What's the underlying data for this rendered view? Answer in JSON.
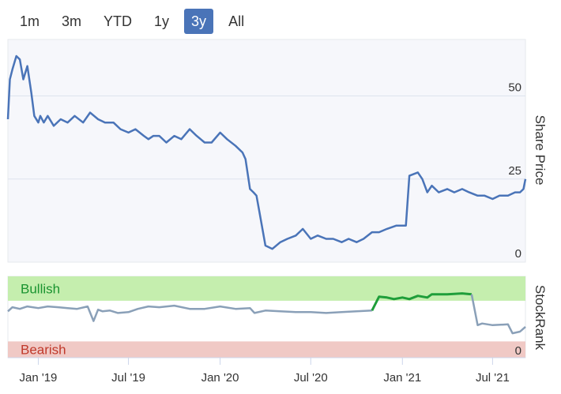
{
  "range_tabs": {
    "items": [
      "1m",
      "3m",
      "YTD",
      "1y",
      "3y",
      "All"
    ],
    "active_index": 4
  },
  "chart_data": [
    {
      "type": "line",
      "ylabel": "Share Price",
      "ylim": [
        0,
        67
      ],
      "yticks": [
        0,
        25,
        50
      ],
      "color": "#4a74b8",
      "grid": true,
      "x": [
        "2018-11-01",
        "2018-11-05",
        "2018-11-10",
        "2018-11-18",
        "2018-11-25",
        "2018-12-02",
        "2018-12-10",
        "2018-12-18",
        "2018-12-24",
        "2019-01-01",
        "2019-01-05",
        "2019-01-12",
        "2019-01-20",
        "2019-02-01",
        "2019-02-15",
        "2019-03-01",
        "2019-03-15",
        "2019-04-01",
        "2019-04-15",
        "2019-05-01",
        "2019-05-15",
        "2019-06-01",
        "2019-06-15",
        "2019-07-01",
        "2019-07-15",
        "2019-08-01",
        "2019-08-10",
        "2019-08-20",
        "2019-09-01",
        "2019-09-15",
        "2019-10-01",
        "2019-10-15",
        "2019-11-01",
        "2019-11-15",
        "2019-12-01",
        "2019-12-15",
        "2020-01-01",
        "2020-01-15",
        "2020-02-01",
        "2020-02-15",
        "2020-02-21",
        "2020-03-01",
        "2020-03-08",
        "2020-03-14",
        "2020-03-20",
        "2020-04-01",
        "2020-04-15",
        "2020-05-01",
        "2020-05-15",
        "2020-06-01",
        "2020-06-15",
        "2020-07-01",
        "2020-07-15",
        "2020-08-01",
        "2020-08-15",
        "2020-09-01",
        "2020-09-15",
        "2020-10-01",
        "2020-10-15",
        "2020-11-01",
        "2020-11-15",
        "2020-12-01",
        "2020-12-20",
        "2021-01-05",
        "2021-01-08",
        "2021-01-15",
        "2021-02-01",
        "2021-02-10",
        "2021-02-20",
        "2021-03-01",
        "2021-03-15",
        "2021-04-01",
        "2021-04-15",
        "2021-05-01",
        "2021-05-15",
        "2021-06-01",
        "2021-06-15",
        "2021-07-01",
        "2021-07-15",
        "2021-08-01",
        "2021-08-15",
        "2021-08-25",
        "2021-09-01",
        "2021-09-05"
      ],
      "values": [
        43,
        55,
        58,
        62,
        61,
        55,
        59,
        51,
        44,
        42,
        44,
        42,
        44,
        41,
        43,
        42,
        44,
        42,
        45,
        43,
        42,
        42,
        40,
        39,
        40,
        38,
        37,
        38,
        38,
        36,
        38,
        37,
        40,
        38,
        36,
        36,
        39,
        37,
        35,
        33,
        31,
        22,
        21,
        20,
        15,
        5,
        4,
        6,
        7,
        8,
        10,
        7,
        8,
        7,
        7,
        6,
        7,
        6,
        7,
        9,
        9,
        10,
        11,
        11,
        11,
        26,
        27,
        25,
        21,
        23,
        21,
        22,
        21,
        22,
        21,
        20,
        20,
        19,
        20,
        20,
        21,
        21,
        22,
        25
      ]
    },
    {
      "type": "line",
      "ylabel": "StockRank",
      "ylim": [
        0,
        100
      ],
      "yticks": [
        0
      ],
      "bands": [
        {
          "label": "Bullish",
          "from": 70,
          "to": 100,
          "color": "#c5eeae",
          "text_color": "#1a9430"
        },
        {
          "label": "Bearish",
          "from": 0,
          "to": 20,
          "color": "#f0c9c5",
          "text_color": "#c0392b"
        }
      ],
      "colors": {
        "line": "#8aa0b8",
        "bullish_line": "#1f9e3a"
      },
      "x": [
        "2018-11-01",
        "2018-11-10",
        "2018-11-25",
        "2018-12-10",
        "2019-01-01",
        "2019-01-20",
        "2019-02-10",
        "2019-03-01",
        "2019-03-20",
        "2019-04-10",
        "2019-04-22",
        "2019-05-01",
        "2019-05-10",
        "2019-05-25",
        "2019-06-10",
        "2019-07-01",
        "2019-07-20",
        "2019-08-10",
        "2019-09-01",
        "2019-10-01",
        "2019-11-01",
        "2019-12-01",
        "2020-01-01",
        "2020-02-01",
        "2020-03-01",
        "2020-03-10",
        "2020-04-01",
        "2020-05-01",
        "2020-06-01",
        "2020-07-01",
        "2020-08-01",
        "2020-09-01",
        "2020-10-01",
        "2020-11-01",
        "2020-11-15",
        "2020-12-01",
        "2020-12-15",
        "2021-01-01",
        "2021-01-15",
        "2021-02-01",
        "2021-02-20",
        "2021-03-01",
        "2021-04-01",
        "2021-05-01",
        "2021-05-20",
        "2021-06-01",
        "2021-06-10",
        "2021-07-01",
        "2021-08-01",
        "2021-08-10",
        "2021-08-25",
        "2021-09-05"
      ],
      "values": [
        57,
        62,
        60,
        63,
        61,
        63,
        62,
        61,
        60,
        63,
        45,
        59,
        57,
        58,
        55,
        56,
        60,
        63,
        62,
        64,
        60,
        60,
        63,
        60,
        61,
        55,
        58,
        57,
        56,
        56,
        55,
        56,
        57,
        58,
        75,
        74,
        72,
        74,
        72,
        76,
        74,
        78,
        78,
        79,
        78,
        40,
        42,
        40,
        41,
        30,
        32,
        38
      ]
    }
  ],
  "x_axis": {
    "ticks": [
      "2019-01-01",
      "2019-07-01",
      "2020-01-01",
      "2020-07-01",
      "2021-01-01",
      "2021-07-01"
    ],
    "tick_labels": [
      "Jan '19",
      "Jul '19",
      "Jan '20",
      "Jul '20",
      "Jan '21",
      "Jul '21"
    ]
  }
}
